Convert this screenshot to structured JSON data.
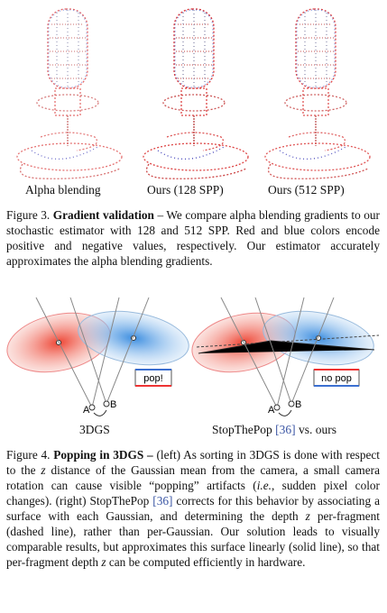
{
  "figure3": {
    "panel_labels": [
      "Alpha blending",
      "Ours (128 SPP)",
      "Ours (512 SPP)"
    ],
    "caption": [
      "Figure 3.",
      "Gradient validation",
      " – We compare alpha blending gradients to our stochastic estimator with 128 and 512 SPP. Red and blue colors encode positive and negative values, respectively. Our estimator accurately approximates the alpha blending gradients."
    ]
  },
  "figure4": {
    "diagram_texts": {
      "left": {
        "bubble": "pop!",
        "a": "A",
        "b": "B"
      },
      "right": {
        "bubble": "no pop",
        "a": "A",
        "b": "B"
      }
    },
    "panel_labels": {
      "left": "3DGS",
      "right": [
        "StopThePop ",
        "[36]",
        " vs. ours"
      ]
    },
    "caption": [
      "Figure 4.",
      "Popping in 3DGS –",
      " (left) As sorting in 3DGS is done with respect to the ",
      "z",
      " distance of the Gaussian mean from the camera, a small camera rotation can cause visible “popping” artifacts (",
      "i.e.",
      ", sudden pixel color changes). (right) StopThePop ",
      "[36]",
      " corrects for this behavior by associating a surface with each Gaussian, and determining the depth ",
      "z",
      " per-fragment (dashed line), rather than per-Gaussian. Our solution leads to visually comparable results, but approximates this surface linearly (solid line), so that per-fragment depth ",
      "z",
      " can be computed efficiently in hardware."
    ]
  }
}
